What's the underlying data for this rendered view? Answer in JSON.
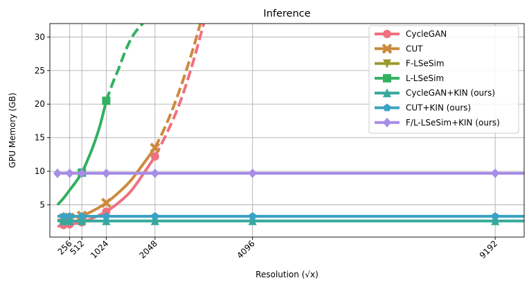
{
  "chart_data": {
    "type": "line",
    "title": "Inference",
    "xlabel": "Resolution (√x)",
    "ylabel": "GPU Memory (GB)",
    "xlim": [
      -160,
      9800
    ],
    "ylim": [
      0.2,
      32
    ],
    "xticks": [
      256,
      512,
      1024,
      2048,
      4096,
      9192
    ],
    "yticks": [
      5,
      10,
      15,
      20,
      25,
      30
    ],
    "grid": true,
    "legend_position": "top-right",
    "series": [
      {
        "name": "CycleGAN",
        "color": "#f07080",
        "marker": "circle",
        "x": [
          128,
          256,
          512,
          1024,
          2048
        ],
        "y": [
          2.0,
          2.1,
          2.4,
          4.0,
          12.2
        ],
        "curve_x": [
          0,
          256,
          512,
          768,
          1024,
          1280,
          1536,
          1792,
          2048,
          2304,
          2560,
          2816,
          3072
        ],
        "curve_y": [
          1.8,
          2.1,
          2.4,
          3.1,
          4.0,
          5.3,
          7.0,
          9.5,
          12.2,
          15.8,
          20.0,
          25.5,
          32.0
        ],
        "solid_until_x": 2048
      },
      {
        "name": "CUT",
        "color": "#cd8a3c",
        "marker": "x",
        "x": [
          128,
          256,
          512,
          1024,
          2048
        ],
        "y": [
          3.0,
          3.1,
          3.4,
          5.3,
          13.5
        ],
        "curve_x": [
          0,
          256,
          512,
          768,
          1024,
          1280,
          1536,
          1792,
          2048,
          2304,
          2560,
          2816,
          3000
        ],
        "curve_y": [
          2.7,
          3.1,
          3.4,
          4.2,
          5.3,
          6.8,
          8.6,
          11.0,
          13.5,
          17.3,
          22.0,
          27.5,
          32.0
        ],
        "solid_until_x": 2048
      },
      {
        "name": "F-LSeSim",
        "color": "#9a9a30",
        "marker": "triangle-down",
        "x": [],
        "y": [],
        "curve_x": [],
        "curve_y": []
      },
      {
        "name": "L-LSeSim",
        "color": "#33b062",
        "marker": "square",
        "x": [
          512,
          1024
        ],
        "y": [
          9.8,
          20.5
        ],
        "curve_x": [
          0,
          128,
          256,
          384,
          512,
          640,
          768,
          896,
          1024,
          1152,
          1280,
          1408,
          1536,
          1664,
          1792
        ],
        "curve_y": [
          5.0,
          6.0,
          7.2,
          8.4,
          9.8,
          11.8,
          14.1,
          16.9,
          20.5,
          23.0,
          25.2,
          27.6,
          29.6,
          31.0,
          32.0
        ],
        "solid_until_x": 1024
      },
      {
        "name": "CycleGAN+KIN (ours)",
        "color": "#36a99c",
        "marker": "triangle-up",
        "x": [
          128,
          256,
          512,
          1024,
          2048,
          4096,
          9192
        ],
        "y": [
          2.6,
          2.6,
          2.6,
          2.6,
          2.6,
          2.6,
          2.6
        ],
        "curve_x": [
          0,
          9800
        ],
        "curve_y": [
          2.6,
          2.6
        ],
        "solid_until_x": 9800
      },
      {
        "name": "CUT+KIN (ours)",
        "color": "#3aa3c4",
        "marker": "pentagon",
        "x": [
          128,
          256,
          512,
          1024,
          2048,
          4096,
          9192
        ],
        "y": [
          3.3,
          3.3,
          3.3,
          3.3,
          3.3,
          3.3,
          3.3
        ],
        "curve_x": [
          0,
          9800
        ],
        "curve_y": [
          3.3,
          3.3
        ],
        "solid_until_x": 9800
      },
      {
        "name": "F/L-LSeSim+KIN (ours)",
        "color": "#a78de8",
        "marker": "diamond",
        "x": [
          0,
          256,
          512,
          1024,
          2048,
          4096,
          9192
        ],
        "y": [
          9.7,
          9.7,
          9.7,
          9.7,
          9.7,
          9.7,
          9.7
        ],
        "curve_x": [
          0,
          9800
        ],
        "curve_y": [
          9.7,
          9.7
        ],
        "solid_until_x": 9800
      }
    ]
  }
}
